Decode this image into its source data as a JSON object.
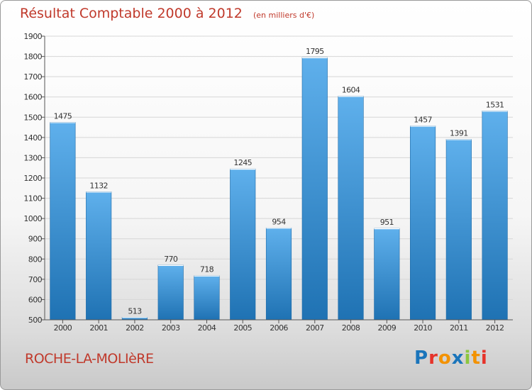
{
  "header": {
    "title": "Résultat Comptable 2000 à 2012",
    "subtitle": "(en milliers d'€)"
  },
  "footer": {
    "town": "ROCHE-LA-MOLIèRE",
    "logo_text": "Proxiti",
    "logo_colors": [
      "#1a75bb",
      "#e6332a",
      "#f39200",
      "#1a75bb",
      "#8cc63f",
      "#f39200",
      "#e6332a"
    ]
  },
  "colors": {
    "bar_top": "#5fb0ec",
    "bar_bottom": "#1f72b3",
    "axis": "#555555",
    "grid": "#d6d6d6"
  },
  "chart_data": {
    "type": "bar",
    "title": "Résultat Comptable 2000 à 2012",
    "subtitle": "(en milliers d'€)",
    "xlabel": "",
    "ylabel": "",
    "categories": [
      "2000",
      "2001",
      "2002",
      "2003",
      "2004",
      "2005",
      "2006",
      "2007",
      "2008",
      "2009",
      "2010",
      "2011",
      "2012"
    ],
    "values": [
      1475,
      1132,
      513,
      770,
      718,
      1245,
      954,
      1795,
      1604,
      951,
      1457,
      1391,
      1531
    ],
    "ylim": [
      500,
      1900
    ],
    "yticks": [
      500,
      600,
      700,
      800,
      900,
      1000,
      1100,
      1200,
      1300,
      1400,
      1500,
      1600,
      1700,
      1800,
      1900
    ],
    "grid": true
  }
}
